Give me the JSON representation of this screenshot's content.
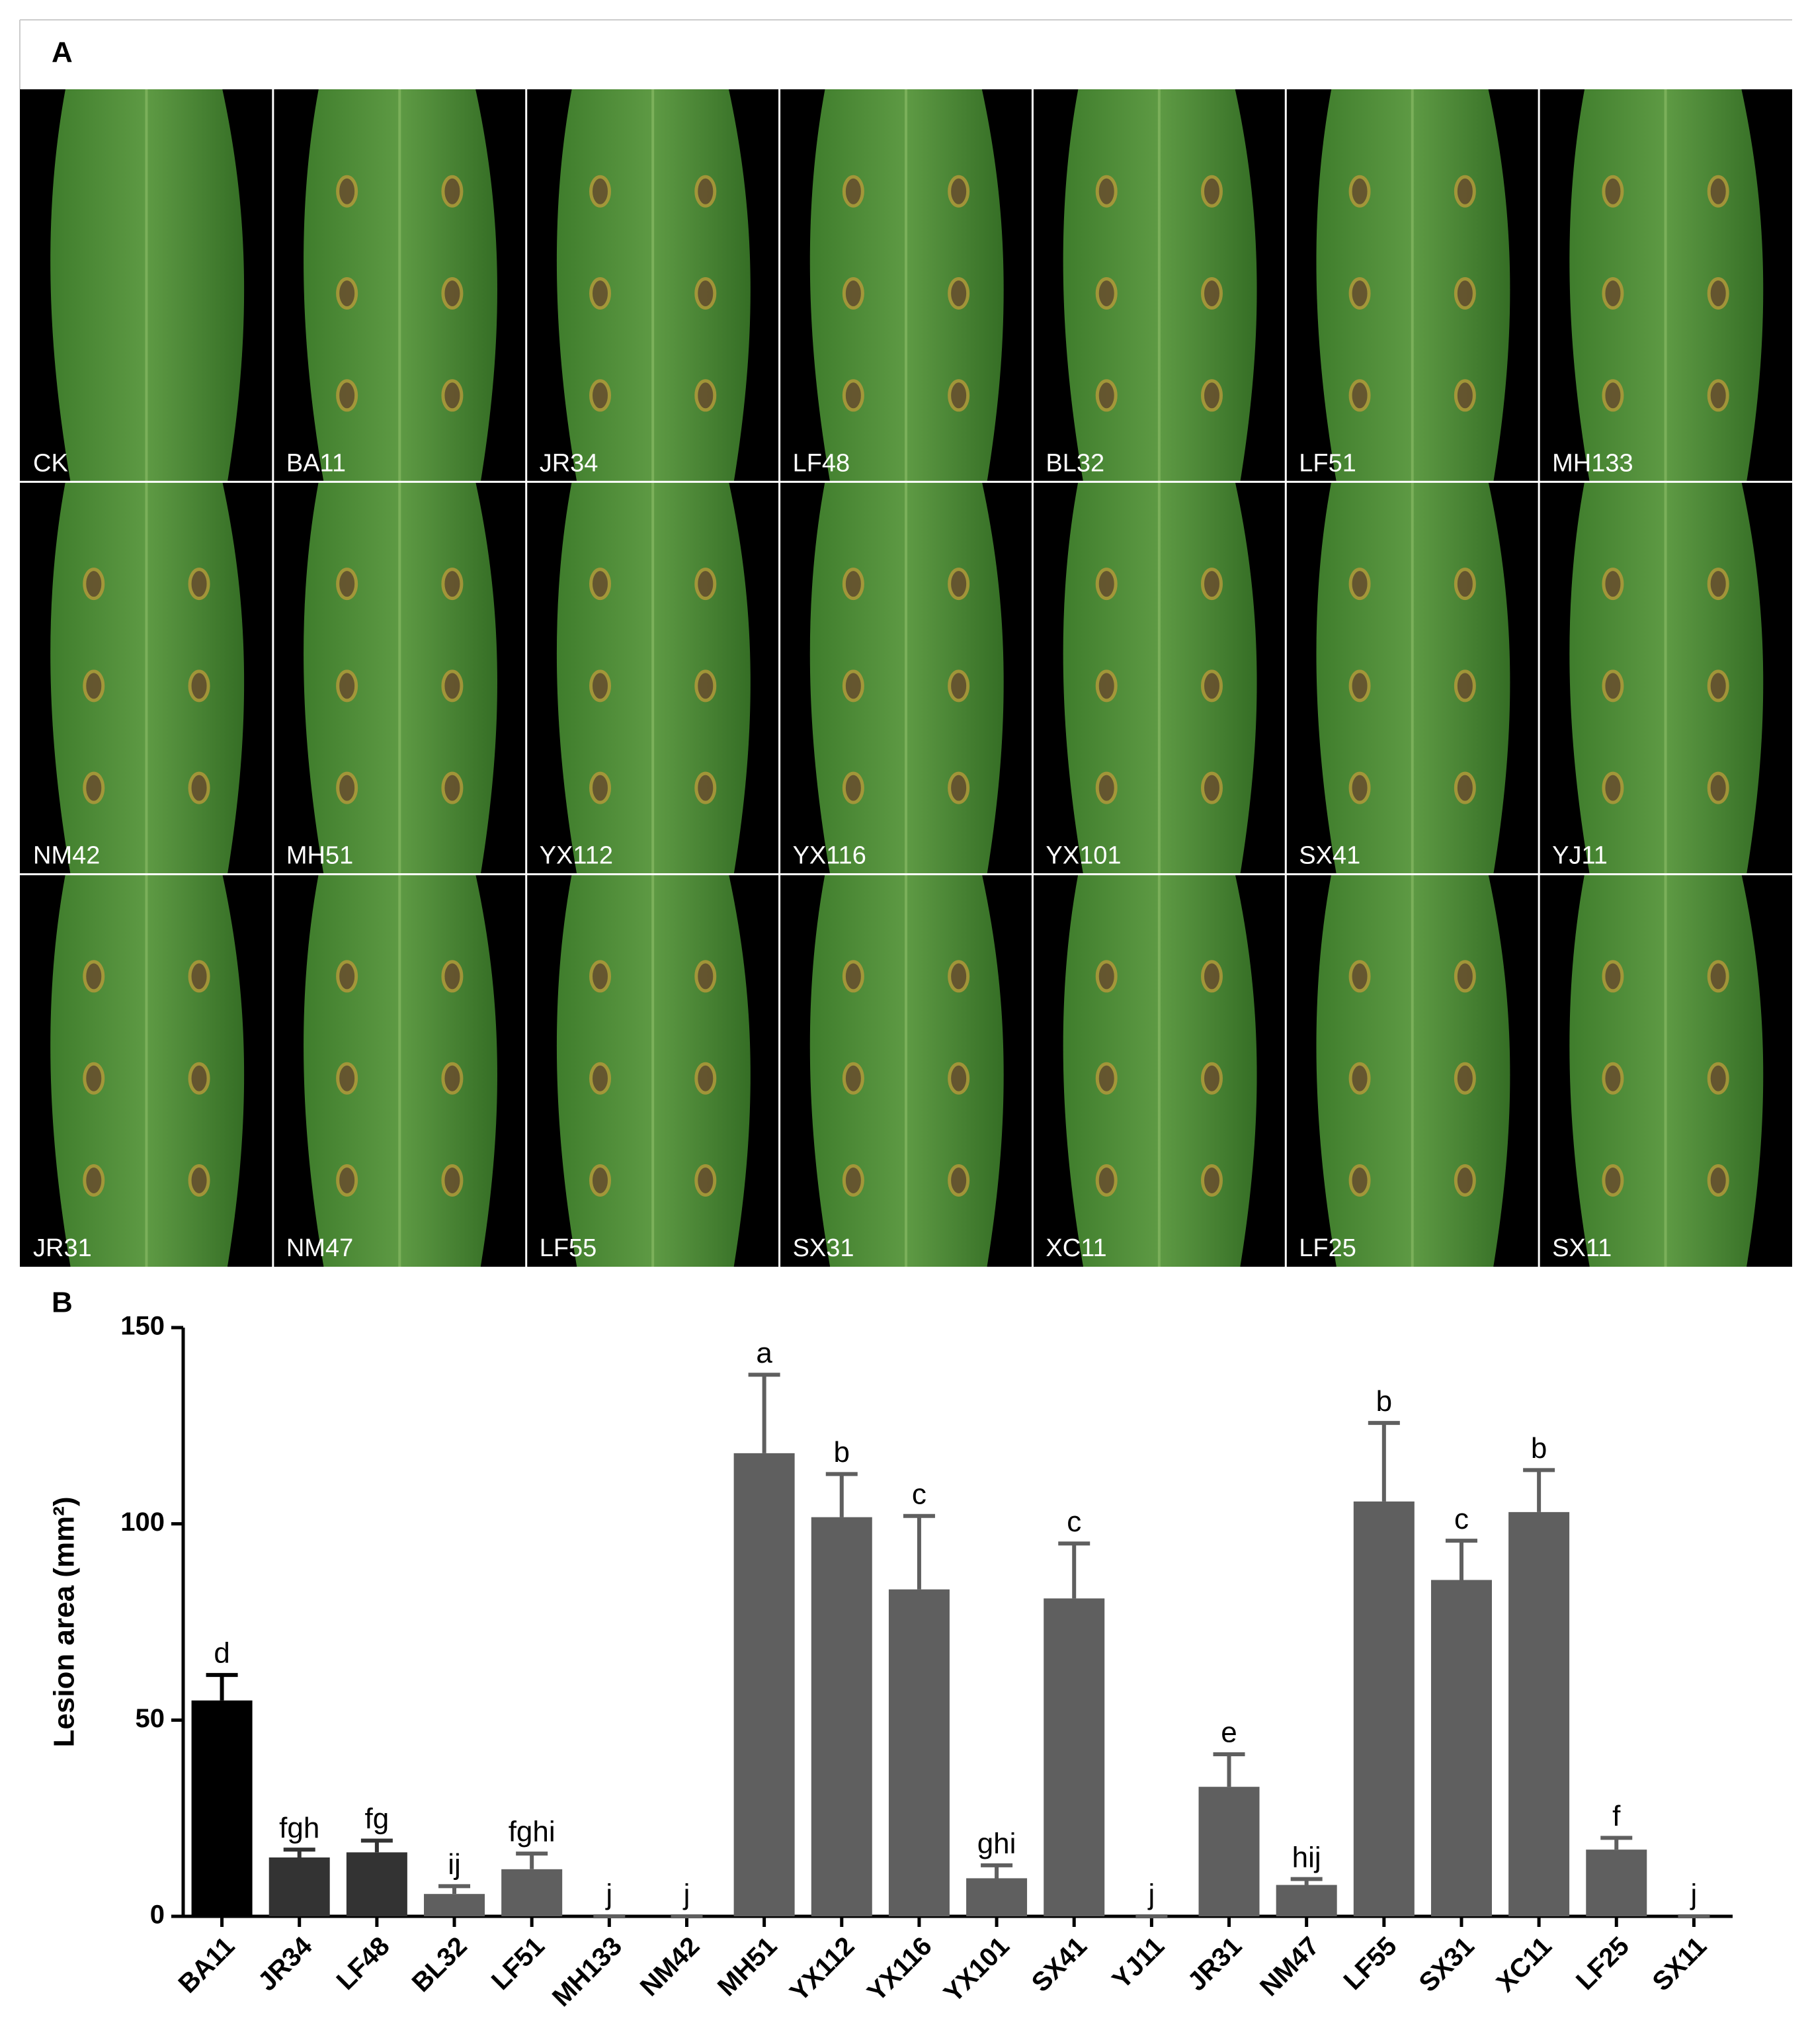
{
  "panel_a": {
    "label": "A",
    "samples": [
      "CK",
      "BA11",
      "JR34",
      "LF48",
      "BL32",
      "LF51",
      "MH133",
      "NM42",
      "MH51",
      "YX112",
      "YX116",
      "YX101",
      "SX41",
      "YJ11",
      "JR31",
      "NM47",
      "LF55",
      "SX31",
      "XC11",
      "LF25",
      "SX11"
    ]
  },
  "chart_data": {
    "type": "bar",
    "panel_label": "B",
    "y_label": "Lesion area (mm²)",
    "categories": [
      "BA11",
      "JR34",
      "LF48",
      "BL32",
      "LF51",
      "MH133",
      "NM42",
      "MH51",
      "YX112",
      "YX116",
      "YX101",
      "SX41",
      "YJ11",
      "JR31",
      "NM47",
      "LF55",
      "SX31",
      "XC11",
      "LF25",
      "SX11"
    ],
    "values": [
      55,
      15,
      16.3,
      5.7,
      12,
      0,
      0,
      118,
      101.7,
      83.3,
      9.7,
      81,
      0,
      33,
      8,
      105.7,
      85.7,
      103,
      17,
      0
    ],
    "errors": [
      6.5,
      2,
      3,
      2,
      4,
      0,
      0,
      20,
      11,
      18.7,
      3.3,
      14,
      0,
      8.3,
      1.5,
      20,
      10,
      10.7,
      3,
      0
    ],
    "annotations": [
      "d",
      "fgh",
      "fg",
      "ij",
      "fghi",
      "j",
      "j",
      "a",
      "b",
      "c",
      "ghi",
      "c",
      "j",
      "e",
      "hij",
      "b",
      "c",
      "b",
      "f",
      "j"
    ],
    "colors": [
      "#000000",
      "#333333",
      "#333333",
      "#5f5f5f",
      "#5f5f5f",
      "#5f5f5f",
      "#5f5f5f",
      "#5f5f5f",
      "#5f5f5f",
      "#5f5f5f",
      "#5f5f5f",
      "#5f5f5f",
      "#5f5f5f",
      "#5f5f5f",
      "#5f5f5f",
      "#5f5f5f",
      "#5f5f5f",
      "#5f5f5f",
      "#5f5f5f",
      "#5f5f5f"
    ],
    "ylim": [
      0,
      150
    ],
    "yticks": [
      0,
      50,
      100,
      150
    ]
  }
}
